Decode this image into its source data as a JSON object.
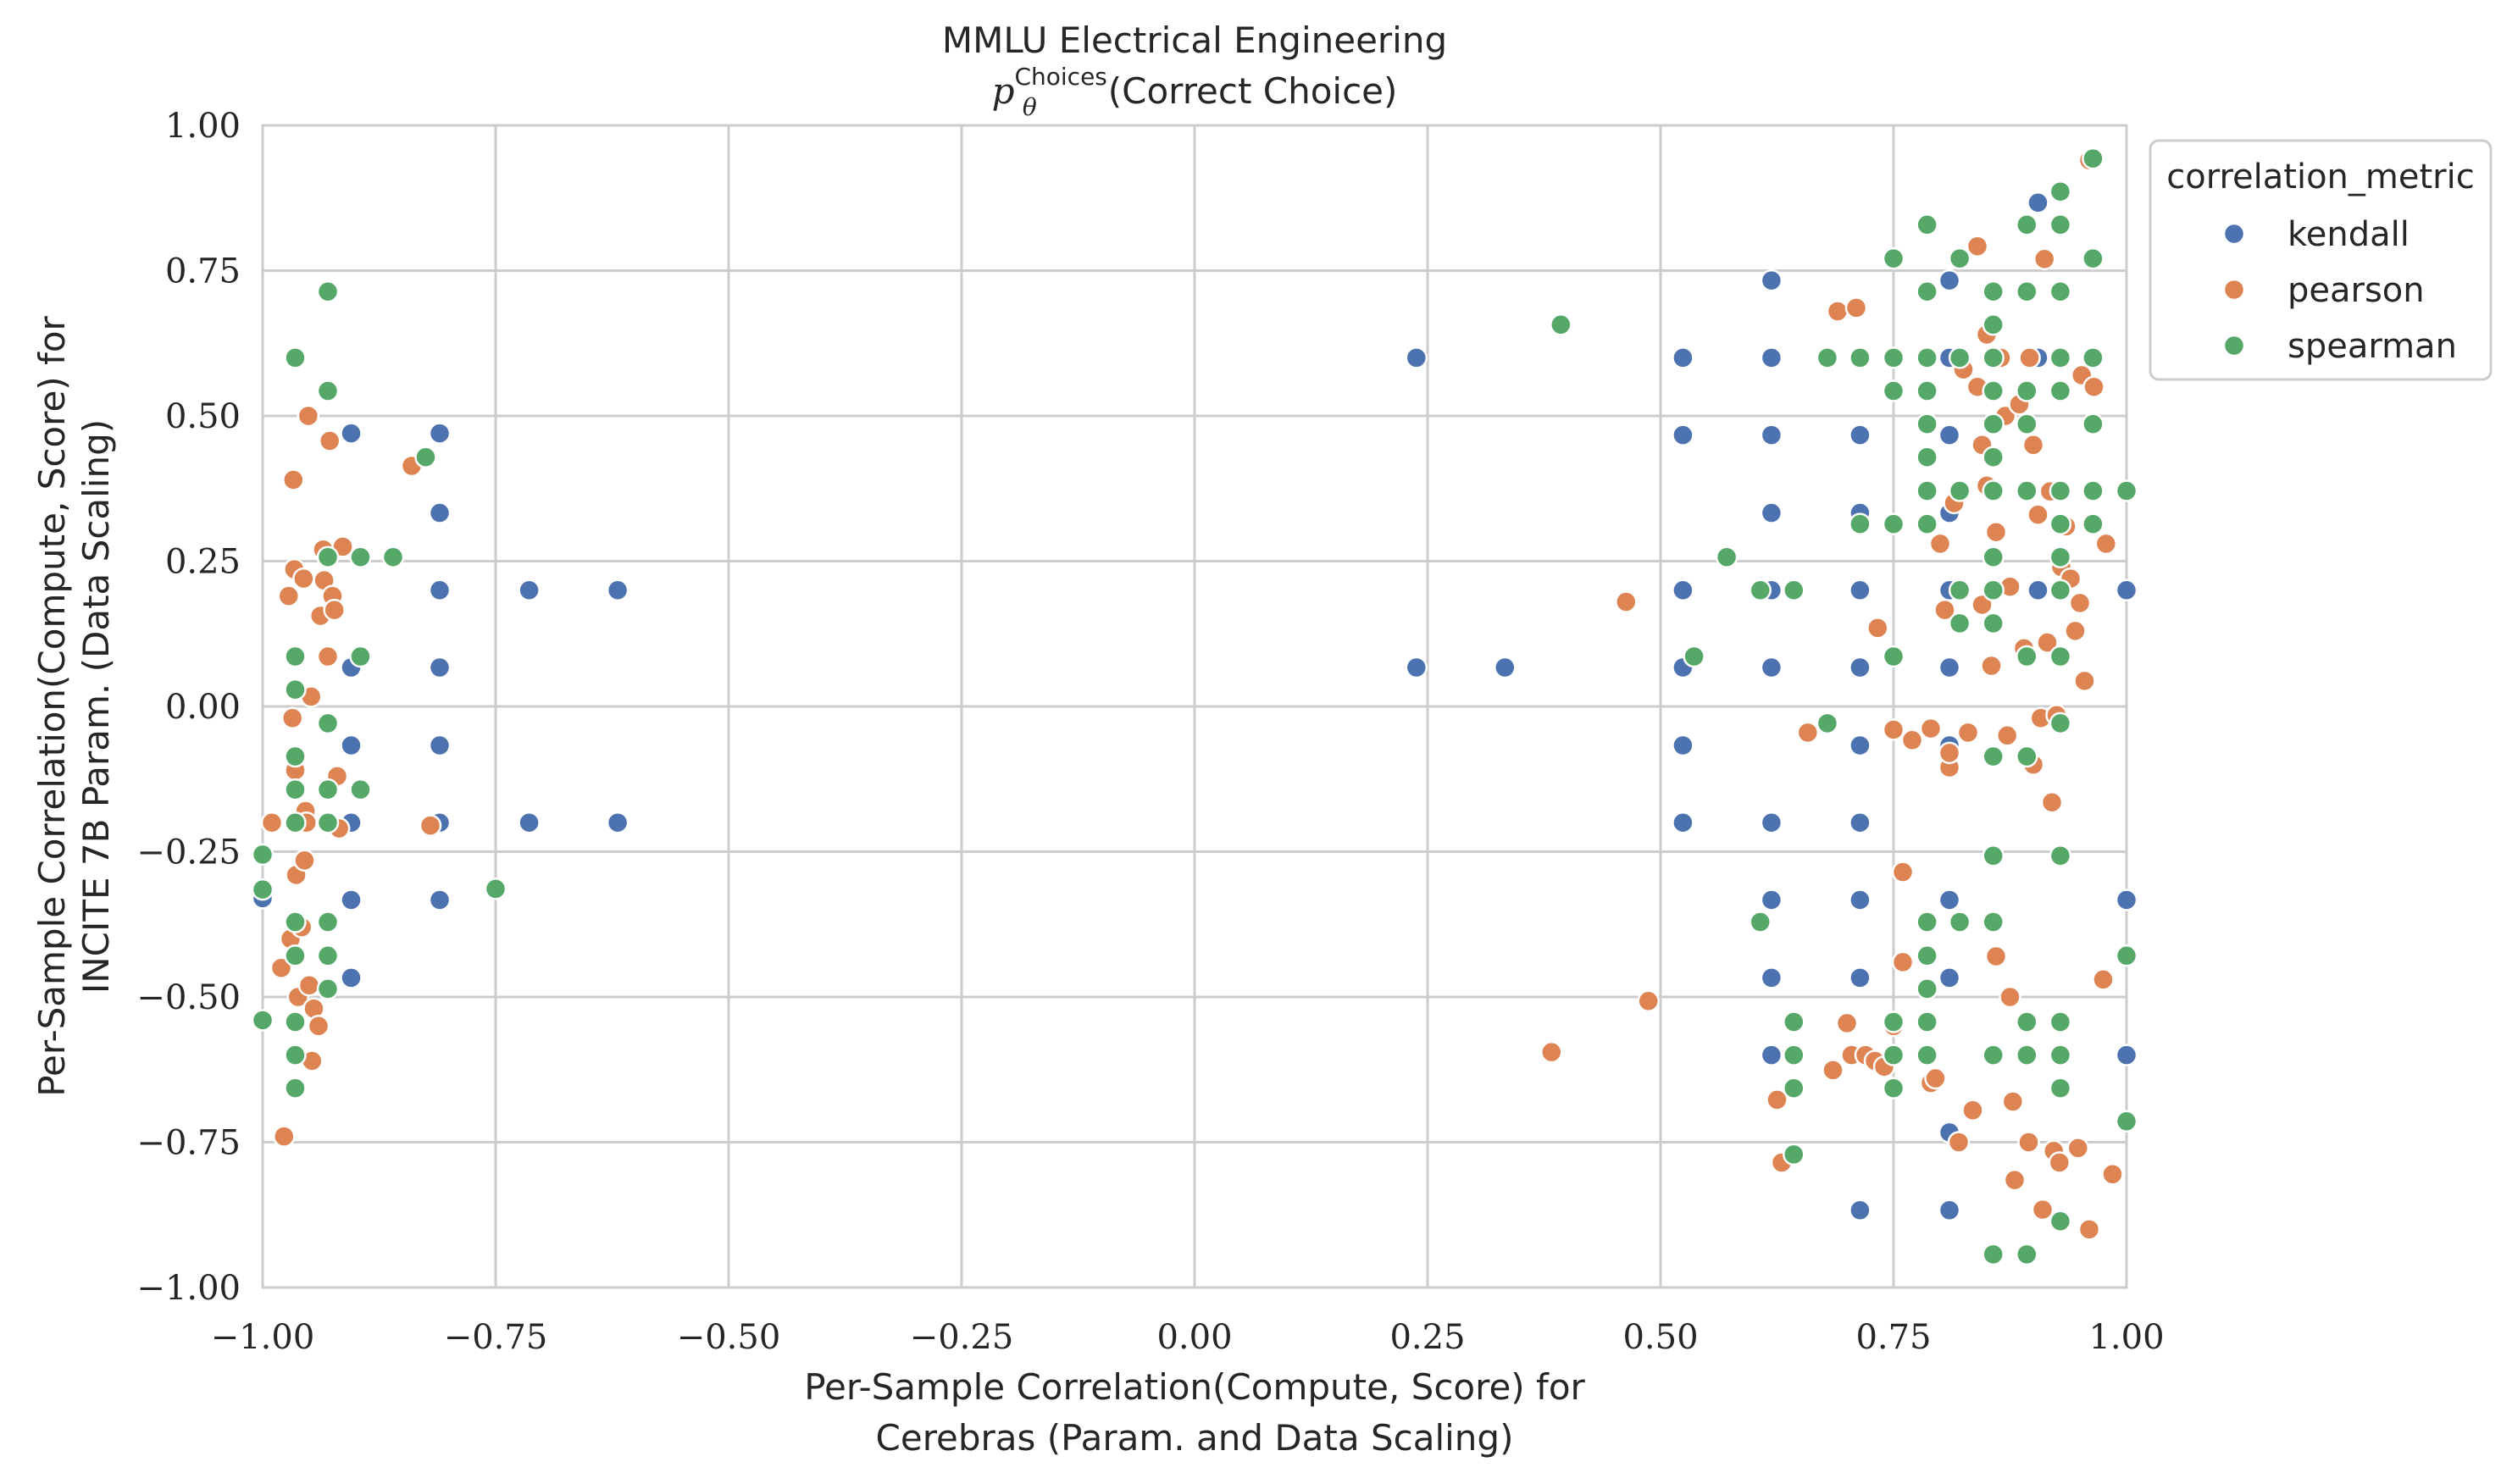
{
  "chart_data": {
    "type": "scatter",
    "title": "MMLU Electrical Engineering",
    "subtitle": {
      "symbol": "p",
      "subscript": "θ",
      "superscript": "Choices",
      "suffix": "(Correct Choice)"
    },
    "xlabel": [
      "Per-Sample Correlation(Compute, Score) for",
      "Cerebras (Param. and Data Scaling)"
    ],
    "ylabel": [
      "Per-Sample Correlation(Compute, Score) for",
      "INCITE 7B Param. (Data Scaling)"
    ],
    "xlim": [
      -1.0,
      1.0
    ],
    "ylim": [
      -1.0,
      1.0
    ],
    "xticks": [
      -1.0,
      -0.75,
      -0.5,
      -0.25,
      0.0,
      0.25,
      0.5,
      0.75,
      1.0
    ],
    "yticks": [
      -1.0,
      -0.75,
      -0.5,
      -0.25,
      0.0,
      0.25,
      0.5,
      0.75,
      1.0
    ],
    "xtick_labels": [
      "−1.00",
      "−0.75",
      "−0.50",
      "−0.25",
      "0.00",
      "0.25",
      "0.50",
      "0.75",
      "1.00"
    ],
    "ytick_labels": [
      "−1.00",
      "−0.75",
      "−0.50",
      "−0.25",
      "0.00",
      "0.25",
      "0.50",
      "0.75",
      "1.00"
    ],
    "grid": true,
    "legend": {
      "title": "correlation_metric",
      "placement": "outside-right-top"
    },
    "series": [
      {
        "name": "kendall",
        "color": "#4c72b0",
        "points": [
          [
            -1.0,
            -0.33
          ],
          [
            -0.905,
            0.47
          ],
          [
            -0.905,
            0.067
          ],
          [
            -0.905,
            -0.067
          ],
          [
            -0.905,
            -0.2
          ],
          [
            -0.905,
            -0.333
          ],
          [
            -0.905,
            -0.467
          ],
          [
            -0.81,
            0.47
          ],
          [
            -0.81,
            0.333
          ],
          [
            -0.81,
            0.2
          ],
          [
            -0.81,
            0.067
          ],
          [
            -0.81,
            -0.067
          ],
          [
            -0.81,
            -0.2
          ],
          [
            -0.81,
            -0.333
          ],
          [
            -0.714,
            0.2
          ],
          [
            -0.714,
            -0.2
          ],
          [
            -0.619,
            0.2
          ],
          [
            -0.619,
            -0.2
          ],
          [
            0.238,
            0.6
          ],
          [
            0.238,
            0.067
          ],
          [
            0.333,
            0.067
          ],
          [
            0.524,
            0.6
          ],
          [
            0.524,
            0.467
          ],
          [
            0.524,
            0.2
          ],
          [
            0.524,
            0.067
          ],
          [
            0.524,
            -0.067
          ],
          [
            0.524,
            -0.2
          ],
          [
            0.619,
            0.733
          ],
          [
            0.619,
            0.6
          ],
          [
            0.619,
            0.467
          ],
          [
            0.619,
            0.333
          ],
          [
            0.619,
            0.2
          ],
          [
            0.619,
            0.067
          ],
          [
            0.619,
            -0.2
          ],
          [
            0.619,
            -0.333
          ],
          [
            0.619,
            -0.467
          ],
          [
            0.619,
            -0.6
          ],
          [
            0.714,
            0.467
          ],
          [
            0.714,
            0.333
          ],
          [
            0.714,
            0.2
          ],
          [
            0.714,
            0.067
          ],
          [
            0.714,
            -0.067
          ],
          [
            0.714,
            -0.2
          ],
          [
            0.714,
            -0.333
          ],
          [
            0.714,
            -0.467
          ],
          [
            0.714,
            -0.6
          ],
          [
            0.714,
            -0.867
          ],
          [
            0.81,
            0.733
          ],
          [
            0.81,
            0.6
          ],
          [
            0.81,
            0.467
          ],
          [
            0.81,
            0.333
          ],
          [
            0.81,
            0.2
          ],
          [
            0.81,
            0.067
          ],
          [
            0.81,
            -0.067
          ],
          [
            0.81,
            -0.333
          ],
          [
            0.81,
            -0.467
          ],
          [
            0.81,
            -0.733
          ],
          [
            0.81,
            -0.867
          ],
          [
            0.905,
            0.867
          ],
          [
            0.905,
            0.6
          ],
          [
            0.905,
            0.2
          ],
          [
            1.0,
            0.2
          ],
          [
            1.0,
            -0.333
          ],
          [
            1.0,
            -0.6
          ]
        ]
      },
      {
        "name": "pearson",
        "color": "#dd8452",
        "points": [
          [
            -0.99,
            -0.2
          ],
          [
            -0.98,
            -0.45
          ],
          [
            -0.977,
            -0.74
          ],
          [
            -0.972,
            0.19
          ],
          [
            -0.97,
            -0.4
          ],
          [
            -0.968,
            -0.02
          ],
          [
            -0.967,
            0.39
          ],
          [
            -0.966,
            0.236
          ],
          [
            -0.965,
            -0.11
          ],
          [
            -0.964,
            -0.29
          ],
          [
            -0.962,
            -0.5
          ],
          [
            -0.958,
            -0.38
          ],
          [
            -0.956,
            0.22
          ],
          [
            -0.955,
            -0.265
          ],
          [
            -0.954,
            -0.18
          ],
          [
            -0.953,
            -0.2
          ],
          [
            -0.951,
            0.5
          ],
          [
            -0.95,
            -0.48
          ],
          [
            -0.948,
            0.017
          ],
          [
            -0.947,
            -0.61
          ],
          [
            -0.945,
            -0.52
          ],
          [
            -0.94,
            -0.55
          ],
          [
            -0.938,
            0.156
          ],
          [
            -0.935,
            0.27
          ],
          [
            -0.934,
            0.217
          ],
          [
            -0.93,
            0.086
          ],
          [
            -0.928,
            0.457
          ],
          [
            -0.925,
            0.19
          ],
          [
            -0.923,
            0.166
          ],
          [
            -0.92,
            -0.12
          ],
          [
            -0.918,
            -0.21
          ],
          [
            -0.914,
            0.275
          ],
          [
            -0.84,
            0.414
          ],
          [
            -0.82,
            -0.205
          ],
          [
            0.383,
            -0.595
          ],
          [
            0.463,
            0.18
          ],
          [
            0.487,
            -0.507
          ],
          [
            0.625,
            -0.677
          ],
          [
            0.63,
            -0.785
          ],
          [
            0.658,
            -0.045
          ],
          [
            0.685,
            -0.626
          ],
          [
            0.69,
            0.68
          ],
          [
            0.7,
            -0.545
          ],
          [
            0.705,
            -0.6
          ],
          [
            0.71,
            0.686
          ],
          [
            0.72,
            -0.6
          ],
          [
            0.73,
            -0.61
          ],
          [
            0.733,
            0.135
          ],
          [
            0.74,
            -0.62
          ],
          [
            0.75,
            -0.55
          ],
          [
            0.75,
            -0.04
          ],
          [
            0.76,
            -0.285
          ],
          [
            0.76,
            -0.44
          ],
          [
            0.77,
            -0.058
          ],
          [
            0.79,
            -0.648
          ],
          [
            0.79,
            -0.038
          ],
          [
            0.795,
            -0.64
          ],
          [
            0.8,
            0.28
          ],
          [
            0.805,
            0.166
          ],
          [
            0.81,
            -0.105
          ],
          [
            0.81,
            -0.08
          ],
          [
            0.815,
            0.35
          ],
          [
            0.82,
            -0.75
          ],
          [
            0.825,
            0.58
          ],
          [
            0.83,
            -0.045
          ],
          [
            0.835,
            -0.695
          ],
          [
            0.84,
            0.792
          ],
          [
            0.84,
            0.55
          ],
          [
            0.845,
            0.175
          ],
          [
            0.845,
            0.45
          ],
          [
            0.85,
            0.64
          ],
          [
            0.85,
            0.38
          ],
          [
            0.855,
            0.07
          ],
          [
            0.86,
            -0.43
          ],
          [
            0.86,
            0.3
          ],
          [
            0.865,
            0.6
          ],
          [
            0.87,
            0.5
          ],
          [
            0.872,
            -0.05
          ],
          [
            0.875,
            -0.5
          ],
          [
            0.875,
            0.206
          ],
          [
            0.878,
            -0.68
          ],
          [
            0.88,
            -0.815
          ],
          [
            0.885,
            0.52
          ],
          [
            0.89,
            0.1
          ],
          [
            0.895,
            -0.75
          ],
          [
            0.896,
            0.6
          ],
          [
            0.9,
            0.45
          ],
          [
            0.9,
            -0.1
          ],
          [
            0.905,
            0.33
          ],
          [
            0.908,
            -0.02
          ],
          [
            0.91,
            -0.866
          ],
          [
            0.912,
            0.77
          ],
          [
            0.915,
            0.11
          ],
          [
            0.918,
            0.37
          ],
          [
            0.92,
            -0.165
          ],
          [
            0.922,
            -0.765
          ],
          [
            0.925,
            -0.015
          ],
          [
            0.928,
            -0.785
          ],
          [
            0.93,
            0.24
          ],
          [
            0.935,
            0.31
          ],
          [
            0.94,
            0.22
          ],
          [
            0.945,
            0.13
          ],
          [
            0.948,
            -0.76
          ],
          [
            0.95,
            0.178
          ],
          [
            0.952,
            0.57
          ],
          [
            0.955,
            0.044
          ],
          [
            0.96,
            0.94
          ],
          [
            0.96,
            -0.9
          ],
          [
            0.965,
            0.55
          ],
          [
            0.975,
            -0.47
          ],
          [
            0.978,
            0.28
          ],
          [
            0.985,
            -0.805
          ]
        ]
      },
      {
        "name": "spearman",
        "color": "#55a868",
        "points": [
          [
            -1.0,
            -0.255
          ],
          [
            -1.0,
            -0.315
          ],
          [
            -1.0,
            -0.54
          ],
          [
            -0.965,
            0.6
          ],
          [
            -0.965,
            0.086
          ],
          [
            -0.965,
            0.029
          ],
          [
            -0.965,
            -0.086
          ],
          [
            -0.965,
            -0.143
          ],
          [
            -0.965,
            -0.2
          ],
          [
            -0.965,
            -0.371
          ],
          [
            -0.965,
            -0.429
          ],
          [
            -0.965,
            -0.543
          ],
          [
            -0.965,
            -0.6
          ],
          [
            -0.965,
            -0.657
          ],
          [
            -0.93,
            0.714
          ],
          [
            -0.93,
            0.543
          ],
          [
            -0.93,
            0.257
          ],
          [
            -0.93,
            -0.029
          ],
          [
            -0.93,
            -0.143
          ],
          [
            -0.93,
            -0.2
          ],
          [
            -0.93,
            -0.371
          ],
          [
            -0.93,
            -0.429
          ],
          [
            -0.93,
            -0.486
          ],
          [
            -0.895,
            0.257
          ],
          [
            -0.895,
            0.086
          ],
          [
            -0.895,
            -0.143
          ],
          [
            -0.86,
            0.257
          ],
          [
            -0.825,
            0.429
          ],
          [
            -0.75,
            -0.314
          ],
          [
            0.393,
            0.657
          ],
          [
            0.571,
            0.257
          ],
          [
            0.536,
            0.086
          ],
          [
            0.607,
            0.2
          ],
          [
            0.607,
            -0.371
          ],
          [
            0.643,
            0.2
          ],
          [
            0.643,
            -0.543
          ],
          [
            0.643,
            -0.6
          ],
          [
            0.643,
            -0.657
          ],
          [
            0.643,
            -0.771
          ],
          [
            0.679,
            0.6
          ],
          [
            0.679,
            -0.029
          ],
          [
            0.714,
            0.6
          ],
          [
            0.714,
            0.314
          ],
          [
            0.75,
            0.771
          ],
          [
            0.75,
            0.6
          ],
          [
            0.75,
            0.543
          ],
          [
            0.75,
            0.314
          ],
          [
            0.75,
            0.086
          ],
          [
            0.75,
            -0.543
          ],
          [
            0.75,
            -0.6
          ],
          [
            0.75,
            -0.657
          ],
          [
            0.786,
            0.829
          ],
          [
            0.786,
            0.714
          ],
          [
            0.786,
            0.6
          ],
          [
            0.786,
            0.543
          ],
          [
            0.786,
            0.486
          ],
          [
            0.786,
            0.429
          ],
          [
            0.786,
            0.371
          ],
          [
            0.786,
            0.314
          ],
          [
            0.786,
            -0.371
          ],
          [
            0.786,
            -0.429
          ],
          [
            0.786,
            -0.486
          ],
          [
            0.786,
            -0.543
          ],
          [
            0.786,
            -0.6
          ],
          [
            0.821,
            0.771
          ],
          [
            0.821,
            0.6
          ],
          [
            0.821,
            0.371
          ],
          [
            0.821,
            0.2
          ],
          [
            0.821,
            0.143
          ],
          [
            0.821,
            -0.371
          ],
          [
            0.857,
            0.714
          ],
          [
            0.857,
            0.657
          ],
          [
            0.857,
            0.6
          ],
          [
            0.857,
            0.543
          ],
          [
            0.857,
            0.486
          ],
          [
            0.857,
            0.429
          ],
          [
            0.857,
            0.371
          ],
          [
            0.857,
            0.257
          ],
          [
            0.857,
            0.2
          ],
          [
            0.857,
            0.143
          ],
          [
            0.857,
            -0.086
          ],
          [
            0.857,
            -0.257
          ],
          [
            0.857,
            -0.371
          ],
          [
            0.857,
            -0.6
          ],
          [
            0.857,
            -0.943
          ],
          [
            0.893,
            0.829
          ],
          [
            0.893,
            0.714
          ],
          [
            0.893,
            0.543
          ],
          [
            0.893,
            0.486
          ],
          [
            0.893,
            0.371
          ],
          [
            0.893,
            0.086
          ],
          [
            0.893,
            -0.086
          ],
          [
            0.893,
            -0.543
          ],
          [
            0.893,
            -0.6
          ],
          [
            0.893,
            -0.943
          ],
          [
            0.929,
            0.886
          ],
          [
            0.929,
            0.829
          ],
          [
            0.929,
            0.714
          ],
          [
            0.929,
            0.6
          ],
          [
            0.929,
            0.543
          ],
          [
            0.929,
            0.371
          ],
          [
            0.929,
            0.314
          ],
          [
            0.929,
            0.257
          ],
          [
            0.929,
            0.2
          ],
          [
            0.929,
            0.086
          ],
          [
            0.929,
            -0.029
          ],
          [
            0.929,
            -0.257
          ],
          [
            0.929,
            -0.543
          ],
          [
            0.929,
            -0.6
          ],
          [
            0.929,
            -0.657
          ],
          [
            0.929,
            -0.886
          ],
          [
            0.964,
            0.943
          ],
          [
            0.964,
            0.771
          ],
          [
            0.964,
            0.6
          ],
          [
            0.964,
            0.486
          ],
          [
            0.964,
            0.371
          ],
          [
            0.964,
            0.314
          ],
          [
            1.0,
            0.371
          ],
          [
            1.0,
            -0.429
          ],
          [
            1.0,
            -0.714
          ]
        ]
      }
    ]
  }
}
